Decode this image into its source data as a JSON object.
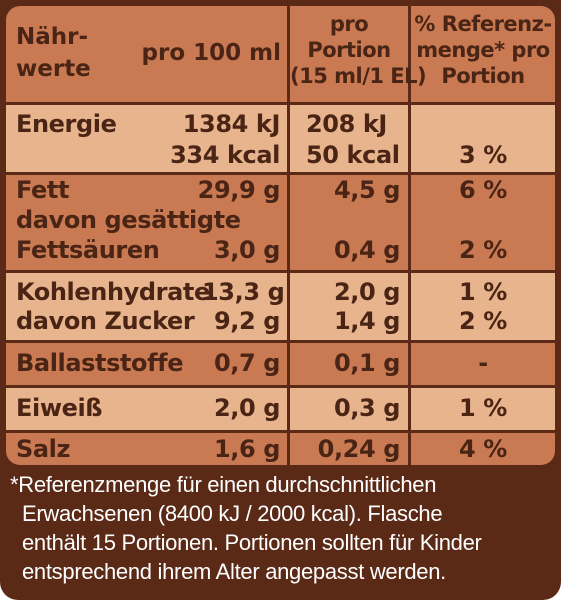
{
  "header": {
    "col1": [
      "Nähr-",
      "werte"
    ],
    "col2": "pro 100 ml",
    "col3": [
      "pro",
      "Portion",
      "(15 ml/1 EL)"
    ],
    "col4": [
      "% Referenz-",
      "menge* pro",
      "Portion"
    ]
  },
  "rows": {
    "energie": {
      "label": "Energie",
      "per100_kj": "1384 kJ",
      "per100_kcal": "334 kcal",
      "portion_kj": "208 kJ",
      "portion_kcal": "50 kcal",
      "ri": "3 %"
    },
    "fett": {
      "label": "Fett",
      "per100": "29,9 g",
      "portion": "4,5 g",
      "ri": "6 %"
    },
    "gesaettigt": {
      "label1": "davon gesättigte",
      "label2": "Fettsäuren",
      "per100": "3,0 g",
      "portion": "0,4 g",
      "ri": "2 %"
    },
    "kohlenhydrate": {
      "label": "Kohlenhydrate",
      "per100": "13,3 g",
      "portion": "2,0 g",
      "ri": "1 %"
    },
    "zucker": {
      "label": "davon Zucker",
      "per100": "9,2 g",
      "portion": "1,4 g",
      "ri": "2 %"
    },
    "ballaststoffe": {
      "label": "Ballaststoffe",
      "per100": "0,7 g",
      "portion": "0,1 g",
      "ri": "-"
    },
    "eiweiss": {
      "label": "Eiweiß",
      "per100": "2,0 g",
      "portion": "0,3 g",
      "ri": "1 %"
    },
    "salz": {
      "label": "Salz",
      "per100": "1,6 g",
      "portion": "0,24 g",
      "ri": "4 %"
    }
  },
  "footnote": [
    "*Referenzmenge für einen durchschnittlichen",
    "Erwachsenen (8400 kJ / 2000 kcal). Flasche",
    "enthält 15 Portionen. Portionen sollten für Kinder",
    "entsprechend ihrem Alter angepasst werden."
  ],
  "colors": {
    "light": "#e8b48d",
    "dark": "#c97a52",
    "border": "#5b2a17",
    "text": "#4a2414"
  }
}
